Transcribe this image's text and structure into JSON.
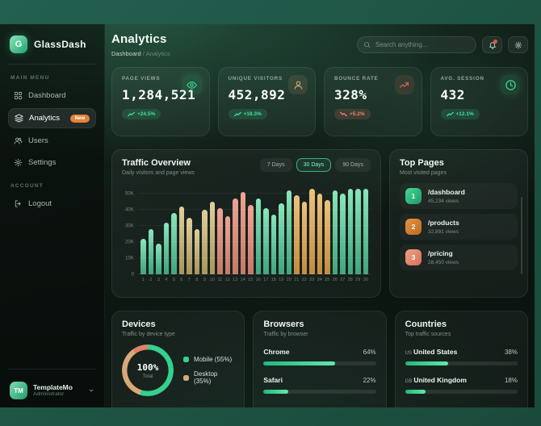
{
  "colors": {
    "frame_green": "#1e5343",
    "accent": "#34d399",
    "badge_up": "#3ddc97",
    "badge_down": "#ef8471",
    "new_badge": "#e2823b",
    "bar_teal": [
      "#8ae5bb",
      "#3fa57d"
    ],
    "bar_tan": [
      "#e0cf9e",
      "#a8955c"
    ],
    "bar_salmon": [
      "#eda595",
      "#c47868"
    ],
    "bar_gold": [
      "#eec27b",
      "#c28c3e"
    ]
  },
  "sidebar": {
    "logo": {
      "initials": "G",
      "name": "GlassDash"
    },
    "menu_label_main": "MAIN MENU",
    "menu_label_account": "ACCOUNT",
    "menu_main": [
      {
        "label": "Dashboard",
        "icon": "grid-icon",
        "active": false
      },
      {
        "label": "Analytics",
        "icon": "layers-icon",
        "active": true,
        "badge": "New"
      },
      {
        "label": "Users",
        "icon": "users-icon",
        "active": false
      },
      {
        "label": "Settings",
        "icon": "gear-icon",
        "active": false
      }
    ],
    "menu_account": [
      {
        "label": "Logout",
        "icon": "logout-icon",
        "active": false
      }
    ],
    "user": {
      "initials": "TM",
      "name": "TemplateMo",
      "role": "Administrator"
    }
  },
  "header": {
    "title": "Analytics",
    "breadcrumb_root": "Dashboard",
    "breadcrumb_sep": "/",
    "breadcrumb_current": "Analytics",
    "search_placeholder": "Search anything..."
  },
  "stats": [
    {
      "label": "PAGE VIEWS",
      "value": "1,284,521",
      "change": "+24.5%",
      "direction": "up",
      "icon": "eye-icon",
      "tone": "green"
    },
    {
      "label": "UNIQUE VISITORS",
      "value": "452,892",
      "change": "+18.3%",
      "direction": "up",
      "icon": "user-icon",
      "tone": "tan"
    },
    {
      "label": "BOUNCE RATE",
      "value": "328%",
      "change": "+5.2%",
      "direction": "down",
      "icon": "trend-up-icon",
      "tone": "red"
    },
    {
      "label": "AVG. SESSION",
      "value": "432",
      "change": "+12.1%",
      "direction": "up",
      "icon": "clock-icon",
      "tone": "green"
    }
  ],
  "chart_data": {
    "type": "bar",
    "title": "Traffic Overview",
    "subtitle": "Daily visitors and page views",
    "ranges": [
      "7 Days",
      "30 Days",
      "90 Days"
    ],
    "active_range": "30 Days",
    "categories": [
      1,
      2,
      3,
      4,
      5,
      6,
      7,
      8,
      9,
      10,
      11,
      12,
      13,
      14,
      15,
      16,
      17,
      18,
      19,
      20,
      21,
      22,
      23,
      24,
      25,
      26,
      27,
      28,
      29,
      30
    ],
    "values_k": [
      22,
      28,
      19,
      32,
      38,
      42,
      35,
      28,
      40,
      45,
      41,
      36,
      47,
      51,
      43,
      47,
      41,
      37,
      44,
      52,
      49,
      45,
      53,
      50,
      46,
      52,
      50,
      53,
      53,
      53
    ],
    "bar_groups": [
      "teal",
      "teal",
      "teal",
      "teal",
      "teal",
      "tan",
      "tan",
      "tan",
      "tan",
      "tan",
      "salmon",
      "salmon",
      "salmon",
      "salmon",
      "salmon",
      "teal",
      "teal",
      "teal",
      "teal",
      "teal",
      "gold",
      "gold",
      "gold",
      "gold",
      "gold",
      "teal",
      "teal",
      "teal",
      "teal",
      "teal"
    ],
    "y_ticks": [
      "50K",
      "40K",
      "30K",
      "20K",
      "10K",
      "0"
    ],
    "ylim_k": [
      0,
      56
    ],
    "grid": true,
    "legend_position": "none"
  },
  "top_pages": {
    "title": "Top Pages",
    "subtitle": "Most visited pages",
    "items": [
      {
        "rank": "1",
        "path": "/dashboard",
        "views": "45,234 views",
        "tone": "green"
      },
      {
        "rank": "2",
        "path": "/products",
        "views": "32,891 views",
        "tone": "orange"
      },
      {
        "rank": "3",
        "path": "/pricing",
        "views": "28,450 views",
        "tone": "salmon"
      }
    ]
  },
  "devices": {
    "title": "Devices",
    "subtitle": "Traffic by device type",
    "center_value": "100%",
    "center_label": "Total",
    "chart": {
      "type": "pie",
      "segments": [
        {
          "label": "Mobile (55%)",
          "pct": 55,
          "color": "#35d08e"
        },
        {
          "label": "Desktop (35%)",
          "pct": 35,
          "color": "#d8a878"
        },
        {
          "label": "",
          "pct": 10,
          "color": "#e0826b"
        }
      ]
    }
  },
  "browsers": {
    "title": "Browsers",
    "subtitle": "Traffic by browser",
    "items": [
      {
        "name": "Chrome",
        "value": "64%",
        "pct": 64
      },
      {
        "name": "Safari",
        "value": "22%",
        "pct": 22
      }
    ]
  },
  "countries": {
    "title": "Countries",
    "subtitle": "Top traffic sources",
    "items": [
      {
        "code": "US",
        "name": "United States",
        "value": "38%",
        "pct": 38
      },
      {
        "code": "GB",
        "name": "United Kingdom",
        "value": "18%",
        "pct": 18
      }
    ]
  }
}
